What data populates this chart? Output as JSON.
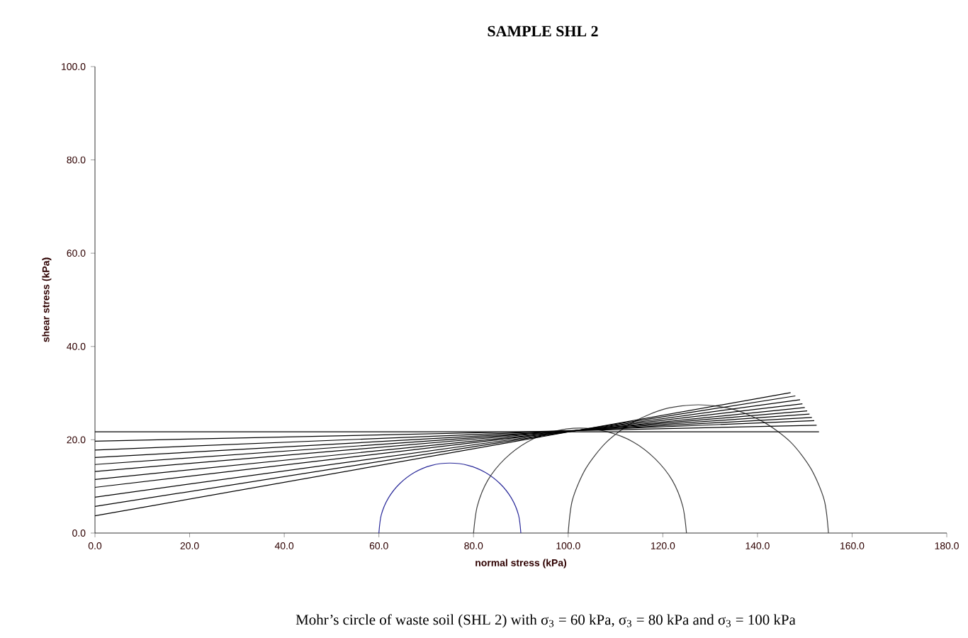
{
  "chart_data": {
    "type": "line",
    "title": "SAMPLE SHL 2",
    "xlabel": "normal stress  (kPa)",
    "ylabel": "shear stress  (kPa)",
    "annotations": [
      "Mohr’s circle of waste soil (SHL 2) with σ$_{3}$ = 60 kPa, σ$_{3}$ = 80 kPa and σ$_{3}$ = 100 kPa"
    ],
    "xlim": [
      0,
      180
    ],
    "ylim": [
      0,
      100
    ],
    "xticks": [
      {
        "value": 0,
        "label": "0.0"
      },
      {
        "value": 20,
        "label": "20.0"
      },
      {
        "value": 40,
        "label": "40.0"
      },
      {
        "value": 60,
        "label": "60.0"
      },
      {
        "value": 80,
        "label": "80.0"
      },
      {
        "value": 100,
        "label": "100.0"
      },
      {
        "value": 120,
        "label": "120.0"
      },
      {
        "value": 140,
        "label": "140.0"
      },
      {
        "value": 160,
        "label": "160.0"
      },
      {
        "value": 180,
        "label": "180.0"
      }
    ],
    "yticks": [
      {
        "value": 0,
        "label": "0.0"
      },
      {
        "value": 20,
        "label": "20.0"
      },
      {
        "value": 40,
        "label": "40.0"
      },
      {
        "value": 60,
        "label": "60.0"
      },
      {
        "value": 80,
        "label": "80.0"
      },
      {
        "value": 100,
        "label": "100.0"
      }
    ],
    "grid": false,
    "marker": "none",
    "line_style": "solid",
    "series": [
      {
        "color": "#2a2a9a",
        "x": [
          60,
          60.5,
          62,
          64.4,
          67.5,
          71.1,
          75,
          78.9,
          82.5,
          85.6,
          88,
          89.5,
          90
        ],
        "values": [
          0,
          3.9,
          7.5,
          10.6,
          13,
          14.5,
          15,
          14.5,
          13,
          10.6,
          7.5,
          3.9,
          0
        ]
      },
      {
        "color": "#404040",
        "x": [
          80,
          80.8,
          83,
          86.6,
          91.3,
          96.7,
          102.5,
          108.3,
          113.8,
          118.4,
          122,
          124.2,
          125
        ],
        "values": [
          0,
          5.8,
          11.3,
          15.9,
          19.5,
          21.7,
          22.5,
          21.7,
          19.5,
          15.9,
          11.3,
          5.8,
          0
        ]
      },
      {
        "color": "#404040",
        "x": [
          100,
          100.9,
          103.7,
          108.1,
          113.8,
          120.4,
          127.5,
          134.6,
          141.3,
          147,
          151.3,
          154.1,
          155
        ],
        "values": [
          0,
          7.1,
          13.8,
          19.5,
          23.8,
          26.6,
          27.5,
          26.6,
          23.8,
          19.5,
          13.8,
          7.1,
          0
        ]
      },
      {
        "color": "#000000",
        "x": [
          0,
          153
        ],
        "values": [
          21.7,
          21.7
        ]
      },
      {
        "color": "#000000",
        "x": [
          0,
          152.5
        ],
        "values": [
          19.7,
          23.1
        ]
      },
      {
        "color": "#000000",
        "x": [
          0,
          152
        ],
        "values": [
          17.8,
          24.1
        ]
      },
      {
        "color": "#000000",
        "x": [
          0,
          151.5
        ],
        "values": [
          16.2,
          24.8
        ]
      },
      {
        "color": "#000000",
        "x": [
          0,
          151
        ],
        "values": [
          14.7,
          25.5
        ]
      },
      {
        "color": "#000000",
        "x": [
          0,
          150.5
        ],
        "values": [
          13.2,
          26.2
        ]
      },
      {
        "color": "#000000",
        "x": [
          0,
          150
        ],
        "values": [
          11.5,
          26.9
        ]
      },
      {
        "color": "#000000",
        "x": [
          0,
          149.5
        ],
        "values": [
          9.8,
          27.7
        ]
      },
      {
        "color": "#000000",
        "x": [
          0,
          149
        ],
        "values": [
          7.7,
          28.6
        ]
      },
      {
        "color": "#000000",
        "x": [
          0,
          148
        ],
        "values": [
          5.7,
          29.4
        ]
      },
      {
        "color": "#000000",
        "x": [
          0,
          147
        ],
        "values": [
          3.7,
          30.1
        ]
      }
    ]
  }
}
